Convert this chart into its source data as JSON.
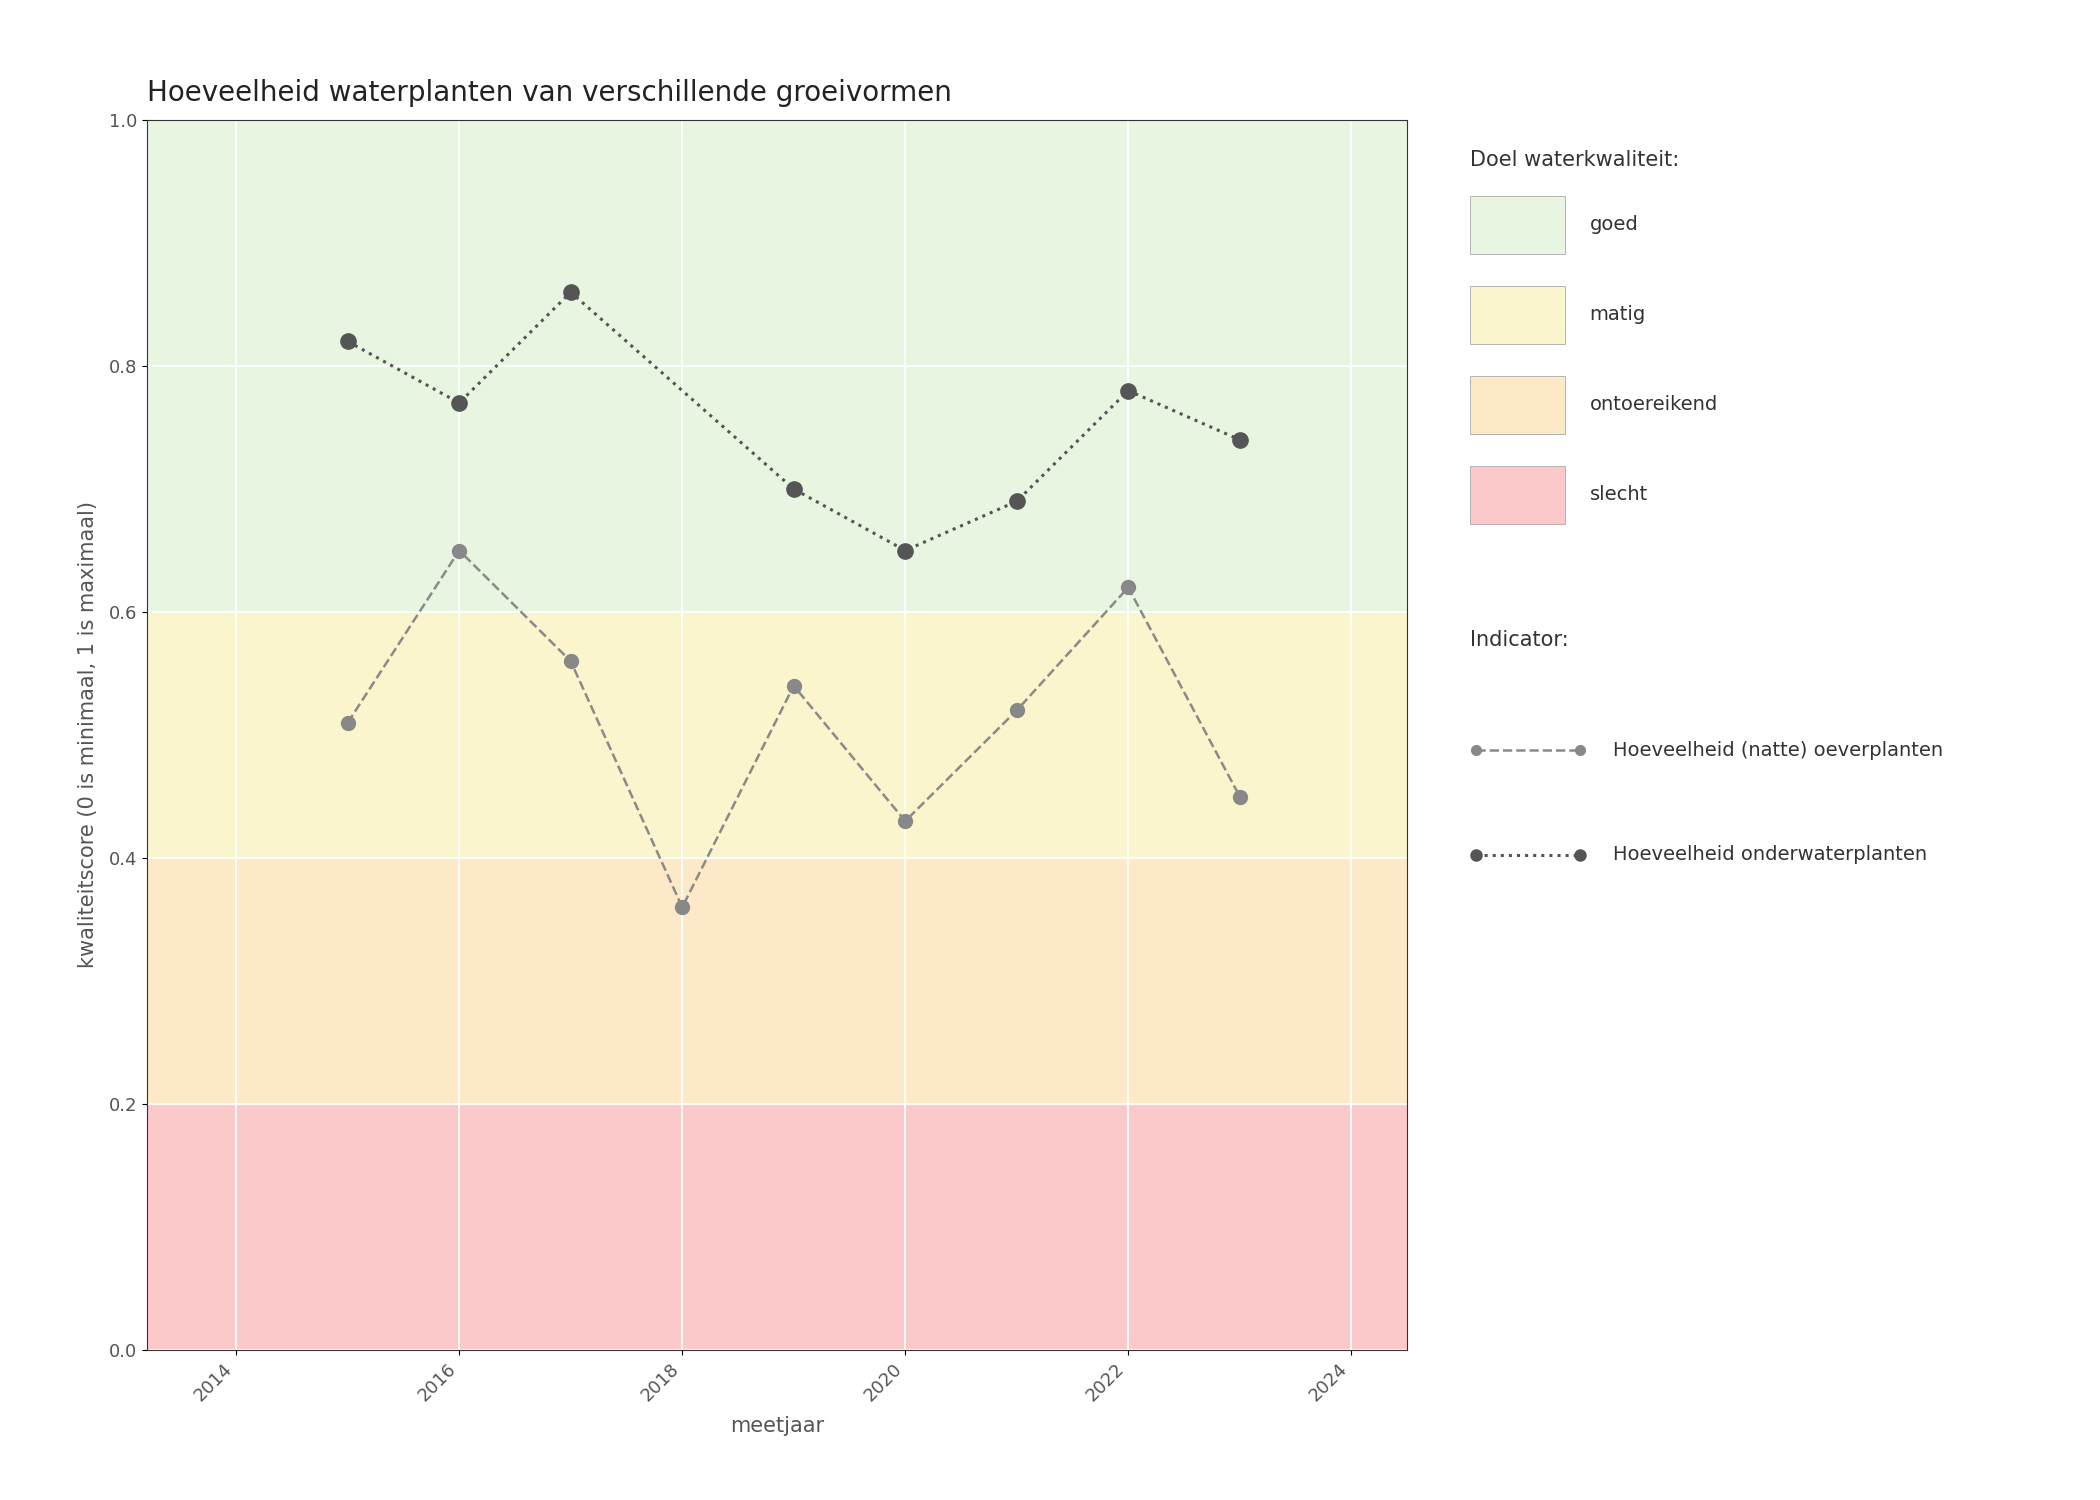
{
  "title": "Hoeveelheid waterplanten van verschillende groeivormen",
  "xlabel": "meetjaar",
  "ylabel": "kwaliteitscore (0 is minimaal, 1 is maximaal)",
  "xlim": [
    2013.2,
    2024.5
  ],
  "ylim": [
    0.0,
    1.0
  ],
  "xticks": [
    2014,
    2016,
    2018,
    2020,
    2022,
    2024
  ],
  "yticks": [
    0.0,
    0.2,
    0.4,
    0.6,
    0.8,
    1.0
  ],
  "background_color": "#ffffff",
  "bg_zones": [
    {
      "ymin": 0.0,
      "ymax": 0.2,
      "color": "#fcc9cb"
    },
    {
      "ymin": 0.2,
      "ymax": 0.4,
      "color": "#fde8c8"
    },
    {
      "ymin": 0.4,
      "ymax": 0.6,
      "color": "#faf5cc"
    },
    {
      "ymin": 0.6,
      "ymax": 1.01,
      "color": "#e8f5e1"
    }
  ],
  "line1": {
    "name": "Hoeveelheid (natte) oeverplanten",
    "x": [
      2015,
      2016,
      2017,
      2018,
      2019,
      2020,
      2021,
      2022,
      2023
    ],
    "y": [
      0.51,
      0.65,
      0.56,
      0.36,
      0.54,
      0.43,
      0.52,
      0.62,
      0.45
    ],
    "color": "#8a8a8a",
    "linestyle": "--",
    "marker": "o",
    "markersize": 10,
    "linewidth": 1.8,
    "markerfacecolor": "#888888",
    "markeredgecolor": "#888888"
  },
  "line2": {
    "name": "Hoeveelheid onderwaterplanten",
    "x": [
      2015,
      2016,
      2017,
      2019,
      2020,
      2021,
      2022,
      2023
    ],
    "y": [
      0.82,
      0.77,
      0.86,
      0.7,
      0.65,
      0.69,
      0.78,
      0.74
    ],
    "color": "#555555",
    "linestyle": ":",
    "marker": "o",
    "markersize": 11,
    "linewidth": 2.2,
    "markerfacecolor": "#555555",
    "markeredgecolor": "#555555"
  },
  "legend_title_doel": "Doel waterkwaliteit:",
  "legend_entries_doel": [
    {
      "label": "goed",
      "color": "#e8f5e1"
    },
    {
      "label": "matig",
      "color": "#faf5cc"
    },
    {
      "label": "ontoereikend",
      "color": "#fde8c8"
    },
    {
      "label": "slecht",
      "color": "#fcc9cb"
    }
  ],
  "legend_title_indicator": "Indicator:",
  "title_fontsize": 20,
  "axis_label_fontsize": 15,
  "tick_fontsize": 13,
  "legend_fontsize": 14
}
